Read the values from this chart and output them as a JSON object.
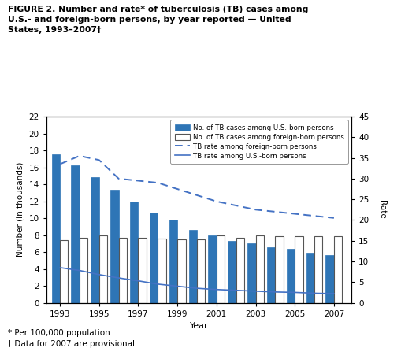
{
  "years": [
    1993,
    1994,
    1995,
    1996,
    1997,
    1998,
    1999,
    2000,
    2001,
    2002,
    2003,
    2004,
    2005,
    2006,
    2007
  ],
  "us_born_cases": [
    17.5,
    16.2,
    14.8,
    13.4,
    12.0,
    10.7,
    9.8,
    8.6,
    8.0,
    7.3,
    7.0,
    6.6,
    6.4,
    5.9,
    5.6
  ],
  "foreign_born_cases": [
    7.4,
    7.7,
    8.0,
    7.7,
    7.7,
    7.6,
    7.5,
    7.5,
    8.0,
    7.7,
    8.0,
    7.9,
    7.9,
    7.9,
    7.9
  ],
  "foreign_born_rate": [
    33.5,
    35.5,
    34.5,
    30.0,
    29.5,
    29.0,
    27.5,
    26.0,
    24.5,
    23.5,
    22.5,
    22.0,
    21.5,
    21.0,
    20.5
  ],
  "us_born_rate": [
    8.5,
    7.8,
    6.8,
    6.0,
    5.3,
    4.5,
    4.0,
    3.5,
    3.2,
    3.0,
    2.8,
    2.6,
    2.5,
    2.3,
    2.2
  ],
  "us_bar_color": "#2e75b6",
  "foreign_bar_color": "#ffffff",
  "foreign_bar_edgecolor": "#555555",
  "us_bar_edgecolor": "#2e75b6",
  "line_foreign_color": "#4472c4",
  "line_us_color": "#4472c4",
  "ylim_left": [
    0,
    22
  ],
  "ylim_right": [
    0,
    45
  ],
  "yticks_left": [
    0,
    2,
    4,
    6,
    8,
    10,
    12,
    14,
    16,
    18,
    20,
    22
  ],
  "yticks_right": [
    0,
    5,
    10,
    15,
    20,
    25,
    30,
    35,
    40,
    45
  ],
  "title_line1": "FIGURE 2. Number and rate* of tuberculosis (TB) cases among",
  "title_line2": "U.S.- and foreign-born persons, by year reported — United",
  "title_line3": "States, 1993–2007†",
  "xlabel": "Year",
  "ylabel_left": "Number (in thousands)",
  "ylabel_right": "Rate",
  "footnote1": "* Per 100,000 population.",
  "footnote2": "† Data for 2007 are provisional.",
  "legend_labels": [
    "No. of TB cases among U.S.-born persons",
    "No. of TB cases among foreign-born persons",
    "TB rate among foreign-born persons",
    "TB rate among U.S.-born persons"
  ],
  "bar_width": 0.42,
  "xtick_years": [
    1993,
    1995,
    1997,
    1999,
    2001,
    2003,
    2005,
    2007
  ]
}
